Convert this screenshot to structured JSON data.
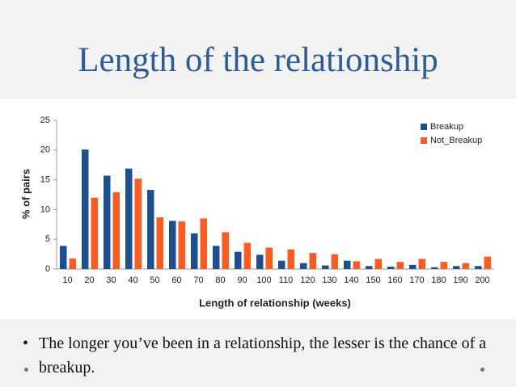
{
  "slide": {
    "title": "Length of the relationship",
    "bullet": "The longer you’ve been in a relationship, the lesser is the chance of a breakup."
  },
  "chart_data": {
    "type": "bar",
    "x_label": "Length of relationship (weeks)",
    "y_label": "% of pairs",
    "categories": [
      "10",
      "20",
      "30",
      "40",
      "50",
      "60",
      "70",
      "80",
      "90",
      "100",
      "110",
      "120",
      "130",
      "140",
      "150",
      "160",
      "170",
      "180",
      "190",
      "200"
    ],
    "series": [
      {
        "name": "Breakup",
        "color": "#1b4f8f",
        "values": [
          3.9,
          20.1,
          15.7,
          16.9,
          13.3,
          8.1,
          6.0,
          3.9,
          2.9,
          2.4,
          1.4,
          1.0,
          0.6,
          1.4,
          0.5,
          0.4,
          0.7,
          0.3,
          0.5,
          0.5
        ]
      },
      {
        "name": "Not_Breakup",
        "color": "#ff5a1f",
        "values": [
          1.8,
          12.0,
          12.9,
          15.2,
          8.7,
          8.0,
          8.5,
          6.2,
          4.4,
          3.6,
          3.3,
          2.7,
          2.5,
          1.3,
          1.7,
          1.2,
          1.7,
          1.2,
          1.0,
          2.1
        ]
      }
    ],
    "ylim": [
      0,
      25
    ],
    "yticks": [
      0,
      5,
      10,
      15,
      20,
      25
    ],
    "grid": false,
    "legend": "top-right"
  }
}
